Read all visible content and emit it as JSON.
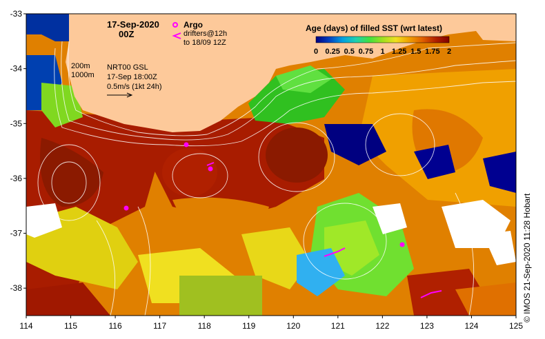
{
  "map": {
    "title_date": "17-Sep-2020",
    "title_time": "00Z",
    "legend": {
      "argo_label": "Argo",
      "drifters_label": "drifters@12h",
      "drifters_range": "to 18/09 12Z"
    },
    "contours": {
      "label_200": "200m",
      "label_1000": "1000m"
    },
    "product": {
      "name": "NRT00 GSL",
      "valid": "17-Sep 18:00Z",
      "scale": "0.5m/s (1kt 24h)"
    },
    "colorbar": {
      "title": "Age (days) of filled SST (wrt latest)",
      "ticks": [
        "0",
        "0.25",
        "0.5",
        "0.75",
        "1",
        "1.25",
        "1.5",
        "1.75",
        "2"
      ],
      "range": [
        0,
        2
      ]
    },
    "x_axis": {
      "ticks": [
        "114",
        "115",
        "116",
        "117",
        "118",
        "119",
        "120",
        "121",
        "122",
        "123",
        "124",
        "125"
      ],
      "range": [
        114,
        125
      ]
    },
    "y_axis": {
      "ticks": [
        "-33",
        "-34",
        "-35",
        "-36",
        "-37",
        "-38"
      ],
      "range": [
        -38.5,
        -33
      ]
    },
    "credit": "© IMOS 21-Sep-2020 11:28 Hobart",
    "colors": {
      "land": "#fdc99a",
      "age_scale": [
        "#00008b",
        "#0050d0",
        "#00a8f0",
        "#30d8a0",
        "#50e040",
        "#a0e020",
        "#f0e020",
        "#f0a000",
        "#e07000",
        "#b02000",
        "#8b0000"
      ]
    }
  }
}
